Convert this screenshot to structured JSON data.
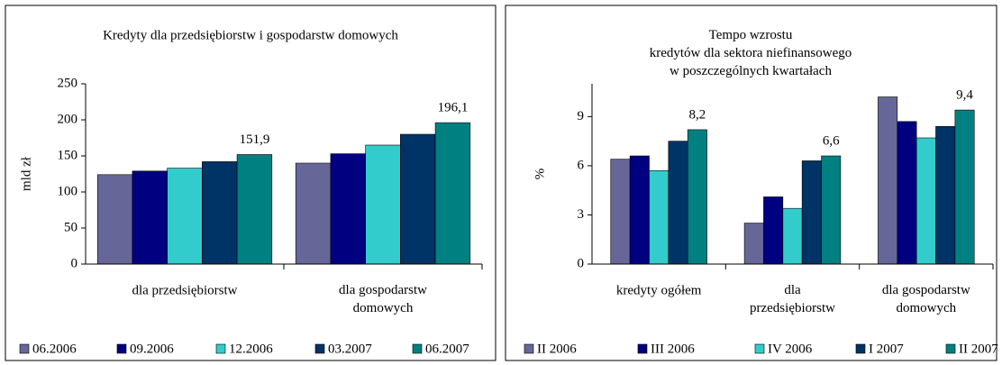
{
  "chart_data": [
    {
      "type": "bar",
      "title": "Kredyty dla przedsiębiorstw i gospodarstw domowych",
      "y_label": "mld zł",
      "categories": [
        "dla przedsiębiorstw",
        "dla gospodarstw\ndomowych"
      ],
      "series": [
        {
          "name": "06.2006",
          "color": "#666699",
          "values": [
            124,
            140
          ]
        },
        {
          "name": "09.2006",
          "color": "#000080",
          "values": [
            129,
            153
          ]
        },
        {
          "name": "12.2006",
          "color": "#33cccc",
          "values": [
            133,
            165
          ]
        },
        {
          "name": "03.2007",
          "color": "#003366",
          "values": [
            142,
            180
          ]
        },
        {
          "name": "06.2007",
          "color": "#008080",
          "values": [
            151.9,
            196.1
          ],
          "value_labels": [
            "151,9",
            "196,1"
          ]
        }
      ],
      "ylim": [
        0,
        250
      ],
      "yticks": [
        0,
        50,
        100,
        150,
        200,
        250
      ]
    },
    {
      "type": "bar",
      "title": "Tempo wzrostu\nkredytów dla sektora niefinansowego\nw poszczególnych kwartałach",
      "y_label": "%",
      "categories": [
        "kredyty ogółem",
        "dla\nprzedsiębiorstw",
        "dla gospodarstw\ndomowych"
      ],
      "series": [
        {
          "name": "II 2006",
          "color": "#666699",
          "values": [
            6.4,
            2.5,
            10.2
          ]
        },
        {
          "name": "III 2006",
          "color": "#000080",
          "values": [
            6.6,
            4.1,
            8.7
          ]
        },
        {
          "name": "IV 2006",
          "color": "#33cccc",
          "values": [
            5.7,
            3.4,
            7.7
          ]
        },
        {
          "name": "I 2007",
          "color": "#003366",
          "values": [
            7.5,
            6.3,
            8.4
          ]
        },
        {
          "name": "II 2007",
          "color": "#008080",
          "values": [
            8.2,
            6.6,
            9.4
          ],
          "value_labels": [
            "8,2",
            "6,6",
            "9,4"
          ]
        }
      ],
      "ylim": [
        0,
        11
      ],
      "yticks": [
        0,
        3,
        6,
        9
      ]
    }
  ]
}
